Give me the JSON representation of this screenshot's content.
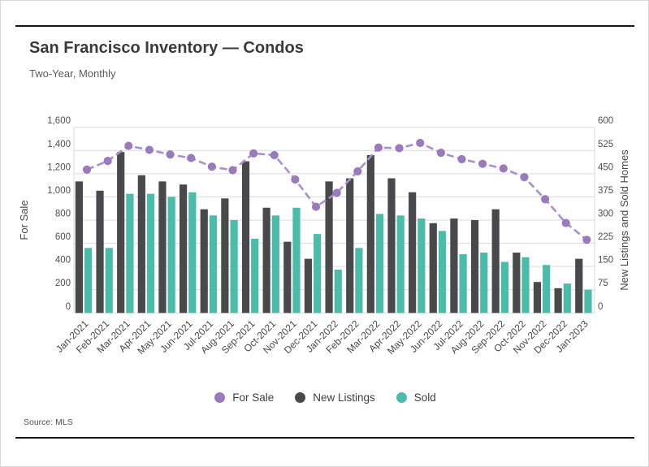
{
  "header": {
    "title": "San Francisco Inventory — Condos",
    "subtitle": "Two-Year, Monthly"
  },
  "source": "Source: MLS",
  "chart_data": {
    "type": "combo-bar-line",
    "grid": true,
    "legend_position": "bottom",
    "categories": [
      "Jan-2021",
      "Feb-2021",
      "Mar-2021",
      "Apr-2021",
      "May-2021",
      "Jun-2021",
      "Jul-2021",
      "Aug-2021",
      "Sep-2021",
      "Oct-2021",
      "Nov-2021",
      "Dec-2021",
      "Jan-2022",
      "Feb-2022",
      "Mar-2022",
      "Apr-2022",
      "May-2022",
      "Jun-2022",
      "Jul-2022",
      "Aug-2022",
      "Sep-2022",
      "Oct-2022",
      "Nov-2022",
      "Dec-2022",
      "Jan-2023"
    ],
    "left_axis": {
      "label": "For Sale",
      "min": 0,
      "max": 1600,
      "step": 200
    },
    "right_axis": {
      "label": "New Listings and Sold Homes",
      "min": 0,
      "max": 600,
      "step": 75
    },
    "series": [
      {
        "name": "For Sale",
        "type": "line",
        "axis": "left",
        "color": "#9b7abc",
        "line_color": "#a98fd0",
        "values": [
          1235,
          1310,
          1440,
          1405,
          1365,
          1335,
          1260,
          1230,
          1375,
          1360,
          1150,
          915,
          1035,
          1220,
          1425,
          1420,
          1465,
          1380,
          1325,
          1285,
          1245,
          1170,
          980,
          775,
          630
        ]
      },
      {
        "name": "New Listings",
        "type": "bar",
        "axis": "right",
        "color": "#49484a",
        "values": [
          425,
          395,
          520,
          445,
          425,
          415,
          335,
          370,
          490,
          340,
          230,
          175,
          425,
          435,
          510,
          435,
          390,
          290,
          305,
          300,
          335,
          195,
          100,
          80,
          175
        ]
      },
      {
        "name": "Sold",
        "type": "bar",
        "axis": "right",
        "color": "#4bbbaa",
        "values": [
          210,
          210,
          385,
          385,
          375,
          390,
          315,
          300,
          240,
          315,
          340,
          255,
          140,
          210,
          320,
          315,
          305,
          265,
          190,
          195,
          165,
          180,
          155,
          95,
          75
        ]
      }
    ],
    "gridline_color": "#dadada"
  }
}
